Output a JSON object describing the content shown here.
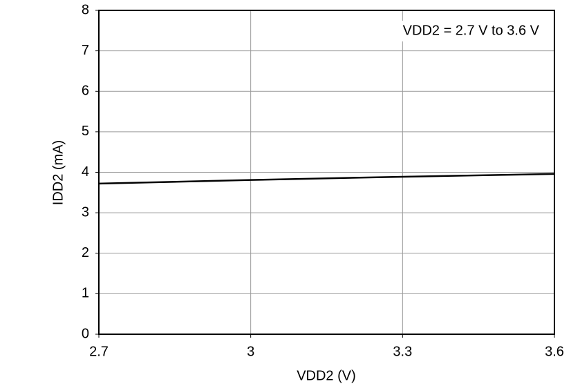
{
  "chart_data": {
    "type": "line",
    "x_label": "VDD2 (V)",
    "y_label": "IDD2 (mA)",
    "annotation": "VDD2 = 2.7 V to 3.6 V",
    "x": [
      2.7,
      3,
      3.3,
      3.6
    ],
    "series": [
      {
        "name": "IDD2",
        "color": "#000000",
        "values": [
          3.72,
          3.81,
          3.89,
          3.96
        ]
      }
    ],
    "xlim": [
      2.7,
      3.6
    ],
    "xticks": [
      2.7,
      3,
      3.3,
      3.6
    ],
    "ylim": [
      0,
      8
    ],
    "yticks": [
      0,
      1,
      2,
      3,
      4,
      5,
      6,
      7,
      8
    ],
    "grid": true
  }
}
